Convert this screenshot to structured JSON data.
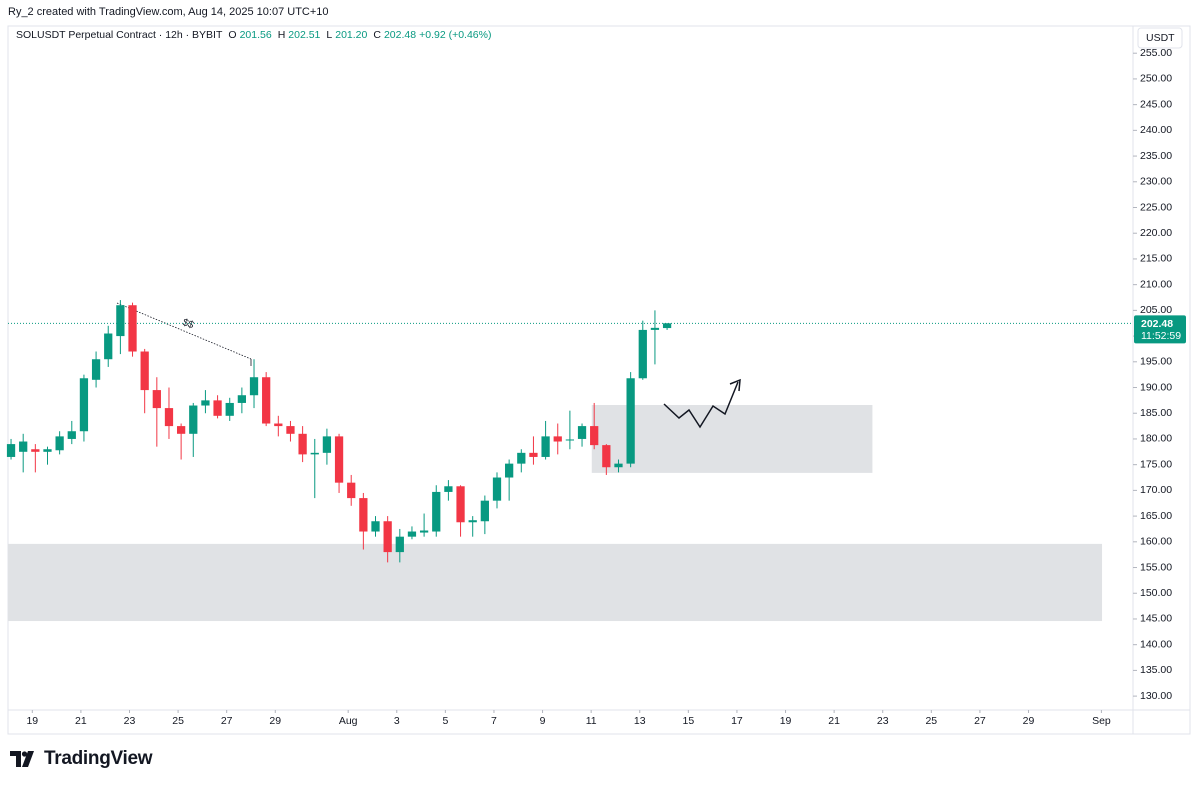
{
  "credit": "Ry_2 created with TradingView.com, Aug 14, 2025 10:07 UTC+10",
  "brand": "TradingView",
  "chart_data": {
    "type": "candlestick",
    "title": "SOLUSDT Perpetual Contract · 12h · BYBIT",
    "ohlc_legend": [
      {
        "name": "O",
        "value": {
          "value": 201.56,
          "label": "201.56"
        }
      },
      {
        "name": "H",
        "value": {
          "value": 202.51,
          "label": "202.51"
        }
      },
      {
        "name": "L",
        "value": {
          "value": 201.2,
          "label": "201.20"
        }
      },
      {
        "name": "C",
        "value": {
          "value": 202.48,
          "label": "202.48"
        }
      }
    ],
    "change": "+0.92 (+0.46%)",
    "currency": "USDT",
    "up_color": "#089981",
    "down_color": "#f23645",
    "categories": [
      null,
      null,
      null,
      null,
      null,
      null,
      null,
      null,
      null,
      null,
      null,
      null,
      null,
      null,
      null,
      null,
      null,
      null,
      null,
      null,
      null,
      null,
      null,
      null,
      null,
      null,
      null,
      null,
      null,
      null,
      null,
      null,
      null,
      null,
      null,
      null,
      null,
      null,
      null,
      null,
      null,
      null,
      null,
      null,
      null,
      null,
      null,
      null,
      null,
      null,
      null,
      null,
      null,
      null,
      null
    ],
    "open": [
      176.5,
      177.5,
      178,
      177.5,
      177.8,
      180,
      181.5,
      191.5,
      195.5,
      200,
      206,
      197,
      189.5,
      186,
      182.5,
      181,
      186.5,
      187.5,
      184.5,
      187,
      188.5,
      192,
      183,
      182.5,
      181,
      177,
      177.3,
      180.5,
      171.5,
      168.5,
      162,
      164,
      158,
      161,
      161.8,
      162,
      169.7,
      170.8,
      163.8,
      164,
      168,
      172.5,
      175.2,
      177.3,
      176.5,
      180.5,
      179.7,
      180,
      182.5,
      178.8,
      174.5,
      175.2,
      191.8,
      201.2,
      201.56
    ],
    "high": [
      180,
      181,
      179,
      178.5,
      181.5,
      183.5,
      192.5,
      197,
      202,
      207,
      206.5,
      197.5,
      192,
      190,
      183,
      187,
      189.5,
      188.5,
      188,
      190,
      195.5,
      193,
      184.5,
      183.5,
      182.5,
      180,
      182,
      181,
      173,
      169.5,
      165,
      165,
      162.5,
      163,
      165.5,
      171,
      172,
      171,
      165,
      169,
      173.5,
      176,
      178,
      180.5,
      183.5,
      183,
      185.5,
      183,
      187,
      179,
      176,
      193,
      203,
      205,
      202.51
    ],
    "low": [
      176,
      173.5,
      173.5,
      175,
      177,
      179,
      179.5,
      190,
      194,
      196.5,
      196,
      185,
      178.5,
      180,
      176,
      176.5,
      185,
      184,
      183.5,
      185,
      186,
      182.5,
      180.5,
      179.5,
      175.5,
      168.5,
      175,
      169.5,
      167,
      158.5,
      161,
      156,
      156,
      160.5,
      161,
      161,
      168,
      161,
      161,
      161.5,
      166.5,
      168,
      173.5,
      175,
      176,
      177,
      178,
      178.5,
      178,
      173,
      173.5,
      174.5,
      191.5,
      194.5,
      201.2
    ],
    "close": [
      179,
      179.5,
      177.5,
      178,
      180.5,
      181.5,
      191.8,
      195.5,
      200.5,
      206,
      197,
      189.5,
      186,
      182.5,
      181,
      186.5,
      187.5,
      184.5,
      187,
      188.5,
      192,
      183,
      182.5,
      181,
      177,
      177.3,
      180.5,
      171.5,
      168.5,
      162,
      164,
      158,
      161,
      162,
      162.2,
      169.7,
      170.8,
      163.8,
      164.2,
      168,
      172.5,
      175.2,
      177.3,
      176.5,
      180.5,
      179.5,
      179.9,
      182.5,
      178.8,
      174.5,
      175.2,
      191.8,
      201.2,
      201.6,
      202.48
    ],
    "xlim": [
      -0.25,
      92.35
    ],
    "xticks": [
      {
        "value": 1.75,
        "label": "19"
      },
      {
        "value": 5.75,
        "label": "21"
      },
      {
        "value": 9.75,
        "label": "23"
      },
      {
        "value": 13.75,
        "label": "25"
      },
      {
        "value": 17.75,
        "label": "27"
      },
      {
        "value": 21.75,
        "label": "29"
      },
      {
        "value": 27.75,
        "label": "Aug"
      },
      {
        "value": 31.75,
        "label": "3"
      },
      {
        "value": 35.75,
        "label": "5"
      },
      {
        "value": 39.75,
        "label": "7"
      },
      {
        "value": 43.75,
        "label": "9"
      },
      {
        "value": 47.75,
        "label": "11"
      },
      {
        "value": 51.75,
        "label": "13"
      },
      {
        "value": 55.75,
        "label": "15"
      },
      {
        "value": 59.75,
        "label": "17"
      },
      {
        "value": 63.75,
        "label": "19"
      },
      {
        "value": 67.75,
        "label": "21"
      },
      {
        "value": 71.75,
        "label": "23"
      },
      {
        "value": 75.75,
        "label": "25"
      },
      {
        "value": 79.75,
        "label": "27"
      },
      {
        "value": 83.75,
        "label": "29"
      },
      {
        "value": 89.75,
        "label": "Sep"
      }
    ],
    "ylim": [
      127.3,
      259.9
    ],
    "yticks": [
      {
        "value": 130,
        "label": "130.00"
      },
      {
        "value": 135,
        "label": "135.00"
      },
      {
        "value": 140,
        "label": "140.00"
      },
      {
        "value": 145,
        "label": "145.00"
      },
      {
        "value": 150,
        "label": "150.00"
      },
      {
        "value": 155,
        "label": "155.00"
      },
      {
        "value": 160,
        "label": "160.00"
      },
      {
        "value": 165,
        "label": "165.00"
      },
      {
        "value": 170,
        "label": "170.00"
      },
      {
        "value": 175,
        "label": "175.00"
      },
      {
        "value": 180,
        "label": "180.00"
      },
      {
        "value": 185,
        "label": "185.00"
      },
      {
        "value": 190,
        "label": "190.00"
      },
      {
        "value": 195,
        "label": "195.00"
      },
      {
        "value": 200,
        "label": "200.00"
      },
      {
        "value": 205,
        "label": "205.00"
      },
      {
        "value": 210,
        "label": "210.00"
      },
      {
        "value": 215,
        "label": "215.00"
      },
      {
        "value": 220,
        "label": "220.00"
      },
      {
        "value": 225,
        "label": "225.00"
      },
      {
        "value": 230,
        "label": "230.00"
      },
      {
        "value": 235,
        "label": "235.00"
      },
      {
        "value": 240,
        "label": "240.00"
      },
      {
        "value": 245,
        "label": "245.00"
      },
      {
        "value": 250,
        "label": "250.00"
      },
      {
        "value": 255,
        "label": "255.00"
      }
    ],
    "last_price": {
      "value": 202.48,
      "label": "202.48"
    },
    "countdown": "11:52:59",
    "zones": [
      {
        "x": [
          47.8,
          70.9
        ],
        "y": [
          173.4,
          186.6
        ],
        "color": "#e0e2e5"
      },
      {
        "x": [
          -0.25,
          89.8
        ],
        "y": [
          144.6,
          159.6
        ],
        "color": "#e0e2e5"
      }
    ],
    "annotation": "$$"
  }
}
